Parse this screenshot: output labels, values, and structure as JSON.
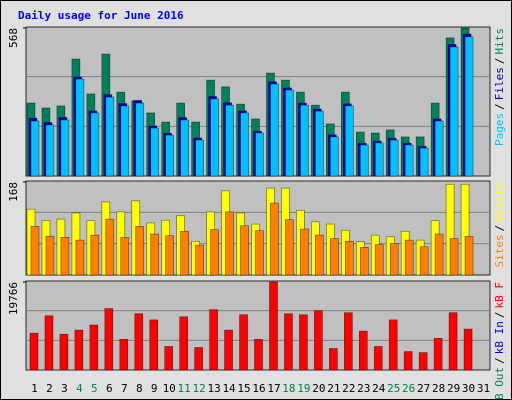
{
  "title": "Daily usage for June 2016",
  "legend_separator": "/",
  "categories": [
    "1",
    "2",
    "3",
    "4",
    "5",
    "6",
    "7",
    "8",
    "9",
    "10",
    "11",
    "12",
    "13",
    "14",
    "15",
    "16",
    "17",
    "18",
    "19",
    "20",
    "21",
    "22",
    "23",
    "24",
    "25",
    "26",
    "27",
    "28",
    "29",
    "30",
    "31"
  ],
  "category_colors": [
    "#000000",
    "#000000",
    "#000000",
    "#008040",
    "#008040",
    "#000000",
    "#000000",
    "#000000",
    "#000000",
    "#000000",
    "#008040",
    "#008040",
    "#000000",
    "#000000",
    "#000000",
    "#000000",
    "#000000",
    "#008040",
    "#008040",
    "#000000",
    "#000000",
    "#000000",
    "#000000",
    "#000000",
    "#008040",
    "#008040",
    "#000000",
    "#000000",
    "#000000",
    "#000000",
    "#000000"
  ],
  "chart_data": [
    {
      "type": "bar",
      "ylim": [
        0,
        568
      ],
      "yticks": [
        568
      ],
      "grid": true,
      "series": [
        {
          "name": "Hits",
          "color": "#00805c",
          "values": [
            280,
            261,
            269,
            449,
            315,
            468,
            322,
            288,
            242,
            207,
            280,
            207,
            368,
            342,
            276,
            219,
            395,
            368,
            322,
            272,
            200,
            322,
            169,
            165,
            177,
            150,
            150,
            280,
            530,
            568,
            null
          ]
        },
        {
          "name": "Files",
          "color": "#0000c0",
          "values": [
            222,
            205,
            225,
            380,
            250,
            312,
            278,
            290,
            192,
            164,
            224,
            146,
            305,
            281,
            250,
            172,
            362,
            338,
            280,
            257,
            158,
            277,
            126,
            134,
            145,
            126,
            114,
            219,
            505,
            545,
            null
          ]
        },
        {
          "name": "Pages",
          "color": "#00c0ff",
          "values": [
            211,
            196,
            215,
            372,
            242,
            303,
            269,
            280,
            184,
            157,
            215,
            138,
            296,
            272,
            242,
            165,
            353,
            330,
            272,
            249,
            150,
            269,
            119,
            127,
            138,
            119,
            107,
            211,
            495,
            534,
            null
          ]
        }
      ]
    },
    {
      "type": "bar",
      "ylim": [
        0,
        168
      ],
      "yticks": [
        168
      ],
      "grid": true,
      "series": [
        {
          "name": "Visits",
          "color": "#ffff00",
          "values": [
            119,
            98,
            101,
            112,
            98,
            132,
            114,
            134,
            94,
            99,
            107,
            61,
            114,
            152,
            112,
            92,
            157,
            157,
            117,
            96,
            92,
            81,
            60,
            72,
            69,
            79,
            63,
            98,
            164,
            164,
            null
          ]
        },
        {
          "name": "Sites",
          "color": "#ff8000",
          "values": [
            88,
            70,
            68,
            63,
            72,
            101,
            68,
            88,
            74,
            71,
            79,
            54,
            82,
            114,
            89,
            80,
            130,
            100,
            83,
            72,
            66,
            61,
            50,
            55,
            57,
            63,
            51,
            74,
            66,
            70,
            null
          ]
        }
      ]
    },
    {
      "type": "bar",
      "ylim": [
        0,
        19766
      ],
      "yticks": [
        19766
      ],
      "grid": true,
      "series": [
        {
          "name": "kB F",
          "color": "#ff0000",
          "values": [
            8273,
            12180,
            8043,
            8962,
            10111,
            13788,
            6894,
            12640,
            11260,
            5285,
            11950,
            5056,
            13559,
            8962,
            12410,
            6894,
            19766,
            12640,
            12410,
            13329,
            4826,
            12870,
            8732,
            5285,
            11260,
            4137,
            3907,
            7124,
            12870,
            9192,
            null
          ]
        },
        {
          "name": "kB In",
          "color": "#0000ff"
        },
        {
          "name": "kB Out",
          "color": "#00805c"
        }
      ]
    }
  ]
}
